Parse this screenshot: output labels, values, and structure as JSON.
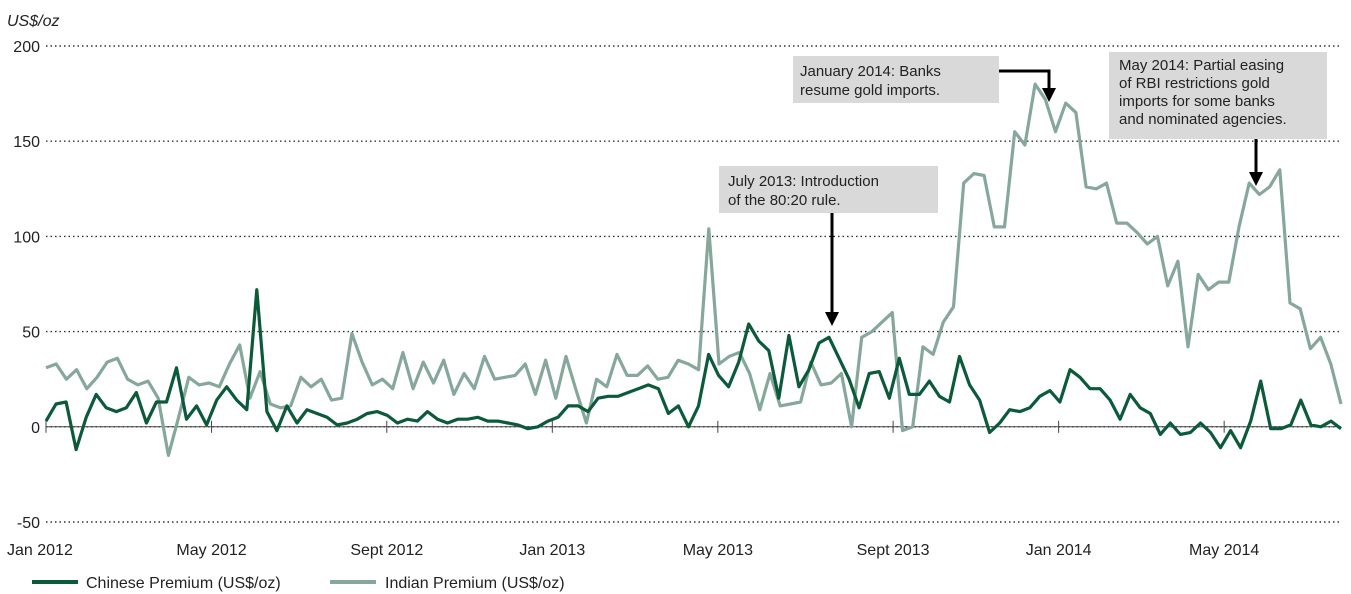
{
  "chart_data": {
    "type": "line",
    "unit_label": "US$/oz",
    "ylim": [
      -50,
      200
    ],
    "yticks": [
      -50,
      0,
      50,
      100,
      150,
      200
    ],
    "grid": "horizontal dotted",
    "x_tick_labels": [
      "Jan 2012",
      "May 2012",
      "Sept 2012",
      "Jan 2013",
      "May 2013",
      "Sept 2013",
      "Jan 2014",
      "May 2014"
    ],
    "x_tick_weeks": [
      0,
      17,
      35,
      52,
      69,
      87,
      104,
      121
    ],
    "x_range_weeks": [
      0,
      133
    ],
    "legend_position": "bottom-left",
    "series": [
      {
        "name": "Chinese Premium (US$/oz)",
        "color": "#0b5a3a",
        "values": [
          3,
          12,
          13,
          -12,
          5,
          17,
          10,
          8,
          10,
          18,
          2,
          13,
          13,
          31,
          4,
          11,
          1,
          14,
          21,
          14,
          9,
          72,
          8,
          -2,
          11,
          2,
          9,
          7,
          5,
          1,
          2,
          4,
          7,
          8,
          6,
          2,
          4,
          3,
          8,
          4,
          2,
          4,
          4,
          5,
          3,
          3,
          2,
          1,
          -1,
          0,
          3,
          5,
          11,
          11,
          8,
          15,
          16,
          16,
          18,
          20,
          22,
          20,
          7,
          11,
          0,
          11,
          38,
          27,
          21,
          34,
          54,
          45,
          40,
          15,
          48,
          21,
          30,
          44,
          47,
          36,
          25,
          10,
          28,
          29,
          15,
          36,
          17,
          17,
          24,
          16,
          13,
          37,
          22,
          14,
          -3,
          2,
          9,
          8,
          10,
          16,
          19,
          13,
          30,
          26,
          20,
          20,
          14,
          4,
          17,
          10,
          7,
          -4,
          2,
          -4,
          -3,
          2,
          -3,
          -11,
          -2,
          -11,
          3,
          24,
          -1,
          -1,
          1,
          14,
          1,
          0,
          3,
          -1
        ]
      },
      {
        "name": "Indian Premium (US$/oz)",
        "color": "#86a89a",
        "values": [
          31,
          33,
          25,
          30,
          20,
          26,
          34,
          36,
          25,
          22,
          24,
          15,
          -15,
          5,
          26,
          22,
          23,
          21,
          33,
          43,
          15,
          29,
          12,
          10,
          11,
          26,
          21,
          25,
          14,
          15,
          49,
          34,
          22,
          25,
          20,
          39,
          20,
          34,
          23,
          35,
          17,
          28,
          20,
          37,
          25,
          26,
          27,
          33,
          17,
          35,
          15,
          37,
          19,
          2,
          25,
          21,
          38,
          27,
          27,
          32,
          25,
          26,
          35,
          33,
          30,
          104,
          33,
          37,
          39,
          28,
          9,
          28,
          11,
          12,
          13,
          34,
          22,
          23,
          28,
          0,
          47,
          50,
          55,
          60,
          -2,
          0,
          42,
          38,
          55,
          63,
          128,
          133,
          132,
          105,
          105,
          155,
          148,
          180,
          172,
          155,
          170,
          165,
          126,
          125,
          128,
          107,
          107,
          102,
          96,
          100,
          74,
          87,
          42,
          80,
          72,
          76,
          76,
          105,
          128,
          122,
          126,
          135,
          65,
          62,
          41,
          47,
          33,
          12
        ]
      }
    ],
    "annotations": [
      {
        "lines": [
          "July 2013: Introduction",
          "of the 80:20 rule."
        ]
      },
      {
        "lines": [
          "January 2014: Banks",
          "resume gold imports."
        ]
      },
      {
        "lines": [
          "May 2014: Partial easing",
          "of RBI restrictions gold",
          "imports for some banks",
          "and nominated agencies."
        ]
      }
    ]
  }
}
